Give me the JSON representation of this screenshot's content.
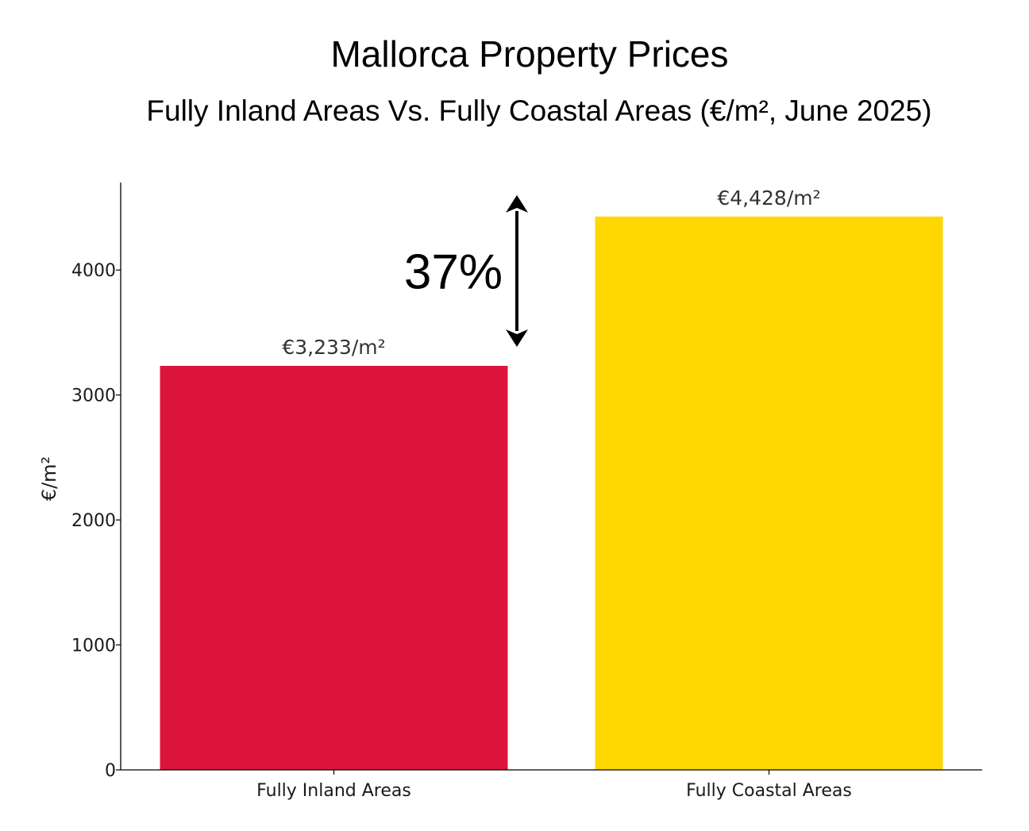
{
  "chart_data": {
    "type": "bar",
    "title": "Mallorca Property Prices",
    "subtitle": "Fully Inland Areas Vs. Fully Coastal Areas (€/m², June 2025)",
    "xlabel": "",
    "ylabel": "€/m²",
    "categories": [
      "Fully Inland Areas",
      "Fully Coastal Areas"
    ],
    "values": [
      3233,
      4428
    ],
    "data_labels": [
      "€3,233/m²",
      "€4,428/m²"
    ],
    "colors": [
      "#DC143C",
      "#FFD700"
    ],
    "ylim": [
      0,
      4700
    ],
    "yticks": [
      0,
      1000,
      2000,
      3000,
      4000
    ],
    "grid": false,
    "annotation": {
      "text": "37%",
      "from_value": 3233,
      "to_value": 4428
    }
  }
}
